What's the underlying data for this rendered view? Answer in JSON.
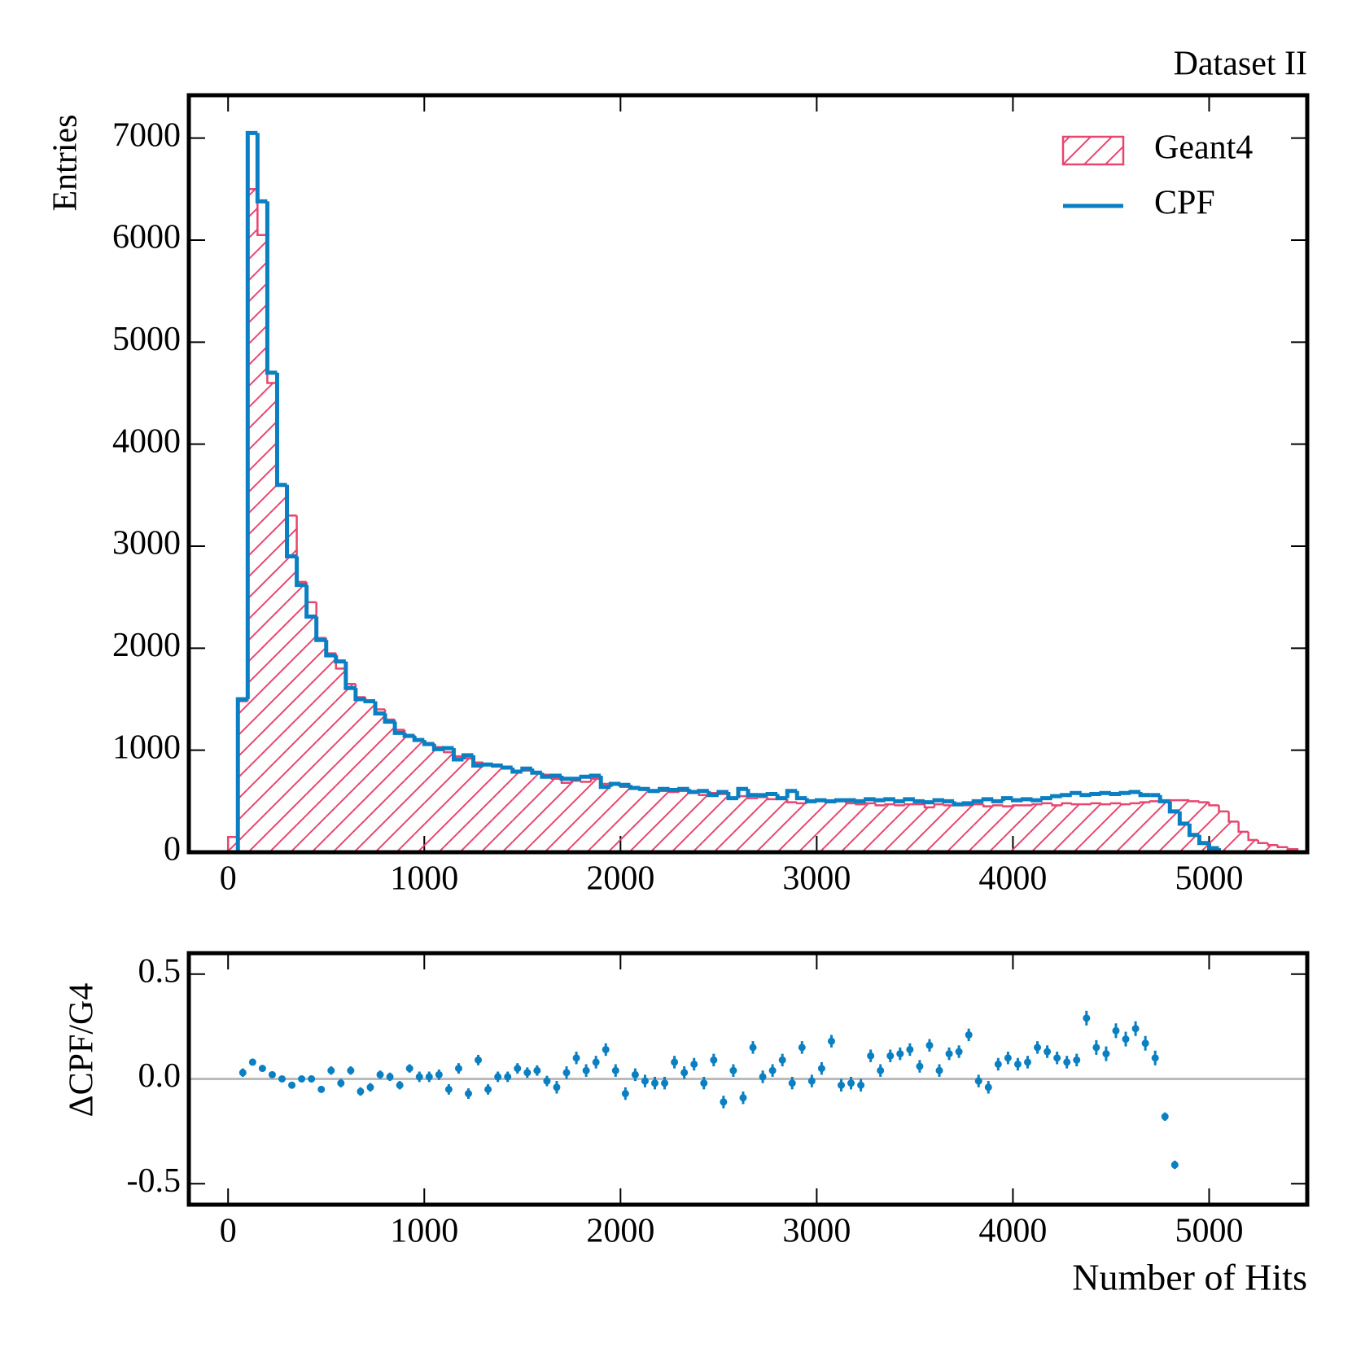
{
  "chart_data": [
    {
      "type": "histogram",
      "annotation": "Dataset II",
      "ylabel": "Entries",
      "legend": "upper right",
      "bins": [
        0,
        50,
        100,
        150,
        200,
        250,
        300,
        350,
        400,
        450,
        500,
        550,
        600,
        650,
        700,
        750,
        800,
        850,
        900,
        950,
        1000,
        1050,
        1100,
        1150,
        1200,
        1250,
        1300,
        1350,
        1400,
        1450,
        1500,
        1550,
        1600,
        1650,
        1700,
        1750,
        1800,
        1850,
        1900,
        1950,
        2000,
        2050,
        2100,
        2150,
        2200,
        2250,
        2300,
        2350,
        2400,
        2450,
        2500,
        2550,
        2600,
        2650,
        2700,
        2750,
        2800,
        2850,
        2900,
        2950,
        3000,
        3050,
        3100,
        3150,
        3200,
        3250,
        3300,
        3350,
        3400,
        3450,
        3500,
        3550,
        3600,
        3650,
        3700,
        3750,
        3800,
        3850,
        3900,
        3950,
        4000,
        4050,
        4100,
        4150,
        4200,
        4250,
        4300,
        4350,
        4400,
        4450,
        4500,
        4550,
        4600,
        4650,
        4700,
        4750,
        4800,
        4850,
        4900,
        4950,
        5000,
        5050,
        5100,
        5150,
        5200,
        5250,
        5300,
        5350,
        5400,
        5450
      ],
      "series": [
        {
          "name": "Geant4",
          "color": "#e8466e",
          "hatch": true,
          "values": [
            150,
            1480,
            6500,
            6050,
            4600,
            3600,
            3300,
            2650,
            2450,
            2100,
            1950,
            1800,
            1650,
            1520,
            1480,
            1400,
            1300,
            1200,
            1150,
            1100,
            1070,
            1030,
            980,
            940,
            920,
            880,
            860,
            850,
            820,
            800,
            800,
            780,
            760,
            720,
            680,
            700,
            690,
            720,
            670,
            660,
            640,
            630,
            610,
            590,
            600,
            590,
            600,
            580,
            560,
            580,
            570,
            530,
            550,
            530,
            540,
            520,
            520,
            490,
            480,
            500,
            500,
            490,
            500,
            480,
            470,
            480,
            460,
            470,
            460,
            470,
            470,
            440,
            470,
            460,
            460,
            460,
            470,
            450,
            460,
            450,
            460,
            460,
            470,
            480,
            460,
            480,
            470,
            470,
            480,
            470,
            480,
            470,
            480,
            490,
            500,
            500,
            510,
            510,
            500,
            490,
            460,
            400,
            300,
            200,
            120,
            90,
            70,
            50,
            30
          ]
        },
        {
          "name": "CPF",
          "color": "#0a7fc2",
          "hatch": false,
          "values": [
            0,
            1500,
            7050,
            6380,
            4700,
            3600,
            2900,
            2620,
            2310,
            2080,
            1930,
            1870,
            1610,
            1500,
            1480,
            1360,
            1280,
            1170,
            1140,
            1100,
            1060,
            1010,
            1020,
            910,
            950,
            850,
            860,
            850,
            830,
            790,
            820,
            780,
            740,
            750,
            720,
            720,
            740,
            750,
            640,
            670,
            660,
            630,
            620,
            600,
            620,
            610,
            620,
            590,
            600,
            560,
            590,
            530,
            620,
            560,
            560,
            570,
            530,
            600,
            530,
            500,
            510,
            500,
            510,
            510,
            500,
            520,
            510,
            520,
            500,
            520,
            500,
            490,
            510,
            500,
            470,
            480,
            500,
            520,
            500,
            530,
            510,
            520,
            510,
            530,
            550,
            560,
            580,
            560,
            570,
            580,
            570,
            580,
            590,
            560,
            560,
            500,
            400,
            280,
            170,
            90,
            40,
            0,
            0,
            0,
            0,
            0,
            0,
            0,
            0
          ]
        }
      ],
      "xlim": [
        -200,
        5500
      ],
      "xticks": [
        0,
        1000,
        2000,
        3000,
        4000,
        5000
      ],
      "ylim": [
        0,
        7420
      ],
      "yticks": [
        0,
        1000,
        2000,
        3000,
        4000,
        5000,
        6000,
        7000
      ]
    },
    {
      "type": "errorbar",
      "xlabel": "Number of Hits",
      "ylabel": "ΔCPF/G4",
      "color": "#0a7fc2",
      "reference_line": 0,
      "reference_color": "#bbbbbb",
      "x": [
        75,
        125,
        175,
        225,
        275,
        325,
        375,
        425,
        475,
        525,
        575,
        625,
        675,
        725,
        775,
        825,
        875,
        925,
        975,
        1025,
        1075,
        1125,
        1175,
        1225,
        1275,
        1325,
        1375,
        1425,
        1475,
        1525,
        1575,
        1625,
        1675,
        1725,
        1775,
        1825,
        1875,
        1925,
        1975,
        2025,
        2075,
        2125,
        2175,
        2225,
        2275,
        2325,
        2375,
        2425,
        2475,
        2525,
        2575,
        2625,
        2675,
        2725,
        2775,
        2825,
        2875,
        2925,
        2975,
        3025,
        3075,
        3125,
        3175,
        3225,
        3275,
        3325,
        3375,
        3425,
        3475,
        3525,
        3575,
        3625,
        3675,
        3725,
        3775,
        3825,
        3875,
        3925,
        3975,
        4025,
        4075,
        4125,
        4175,
        4225,
        4275,
        4325,
        4375,
        4425,
        4475,
        4525,
        4575,
        4625,
        4675,
        4725,
        4775,
        4825
      ],
      "values": [
        0.03,
        0.08,
        0.05,
        0.02,
        0.0,
        -0.03,
        0.0,
        0.0,
        -0.05,
        0.04,
        -0.02,
        0.04,
        -0.06,
        -0.04,
        0.02,
        0.01,
        -0.03,
        0.05,
        0.01,
        0.01,
        0.02,
        -0.05,
        0.05,
        -0.07,
        0.09,
        -0.05,
        0.01,
        0.01,
        0.05,
        0.03,
        0.04,
        -0.01,
        -0.04,
        0.03,
        0.1,
        0.04,
        0.08,
        0.14,
        0.04,
        -0.07,
        0.02,
        -0.01,
        -0.02,
        -0.02,
        0.08,
        0.03,
        0.07,
        -0.02,
        0.09,
        -0.11,
        0.04,
        -0.09,
        0.15,
        0.01,
        0.04,
        0.09,
        -0.02,
        0.15,
        -0.01,
        0.05,
        0.18,
        -0.03,
        -0.02,
        -0.03,
        0.11,
        0.04,
        0.11,
        0.12,
        0.14,
        0.06,
        0.16,
        0.04,
        0.12,
        0.13,
        0.21,
        -0.01,
        -0.04,
        0.07,
        0.1,
        0.07,
        0.08,
        0.15,
        0.13,
        0.1,
        0.08,
        0.09,
        0.29,
        0.15,
        0.12,
        0.23,
        0.19,
        0.24,
        0.17,
        0.1,
        -0.18,
        -0.41
      ],
      "errors": [
        0.02,
        0.01,
        0.01,
        0.01,
        0.01,
        0.015,
        0.015,
        0.015,
        0.015,
        0.02,
        0.02,
        0.02,
        0.02,
        0.02,
        0.02,
        0.02,
        0.02,
        0.02,
        0.025,
        0.025,
        0.025,
        0.025,
        0.025,
        0.025,
        0.025,
        0.025,
        0.025,
        0.025,
        0.025,
        0.025,
        0.025,
        0.025,
        0.03,
        0.03,
        0.03,
        0.03,
        0.03,
        0.03,
        0.03,
        0.03,
        0.03,
        0.03,
        0.03,
        0.03,
        0.03,
        0.03,
        0.03,
        0.03,
        0.03,
        0.03,
        0.03,
        0.03,
        0.03,
        0.03,
        0.03,
        0.03,
        0.03,
        0.03,
        0.03,
        0.03,
        0.03,
        0.03,
        0.03,
        0.03,
        0.03,
        0.03,
        0.03,
        0.03,
        0.03,
        0.03,
        0.03,
        0.03,
        0.03,
        0.03,
        0.03,
        0.03,
        0.03,
        0.03,
        0.03,
        0.03,
        0.03,
        0.03,
        0.03,
        0.03,
        0.03,
        0.03,
        0.035,
        0.035,
        0.035,
        0.035,
        0.035,
        0.035,
        0.035,
        0.035,
        0.02,
        0.02
      ],
      "xlim": [
        -200,
        5500
      ],
      "xticks": [
        0,
        1000,
        2000,
        3000,
        4000,
        5000
      ],
      "ylim": [
        -0.6,
        0.6
      ],
      "yticks": [
        0.5,
        {
          "value": 0,
          "label": "0.0"
        },
        -0.5
      ]
    }
  ]
}
